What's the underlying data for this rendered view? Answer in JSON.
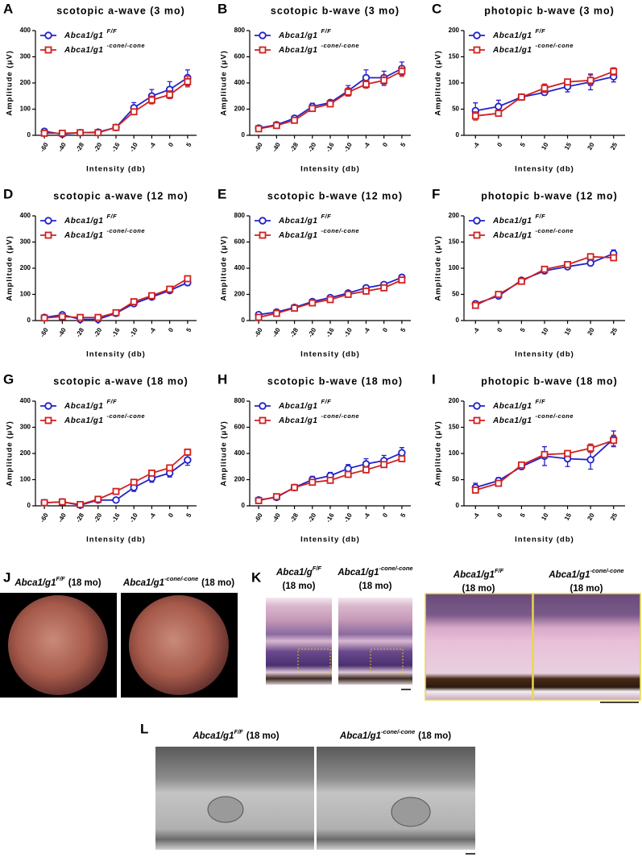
{
  "chart_data": [
    {
      "type": "line",
      "panel": "A",
      "title": "scotopic a-wave (3 mo)",
      "y_label": "Amplitude (μV)",
      "x_label": "Intensity (db)",
      "categories": [
        "-60",
        "-40",
        "-28",
        "-20",
        "-16",
        "-10",
        "-4",
        "0",
        "5"
      ],
      "ylim": [
        0,
        400
      ],
      "yticks": [
        0,
        100,
        200,
        300,
        400
      ],
      "series": [
        {
          "name": "Abca1/g1",
          "superscript": "F/F",
          "color": "#2222c8",
          "marker": "circle",
          "values": [
            15,
            5,
            10,
            12,
            30,
            105,
            150,
            175,
            220
          ],
          "errors": [
            8,
            5,
            5,
            5,
            5,
            20,
            25,
            30,
            30
          ]
        },
        {
          "name": "Abca1/g1",
          "superscript": "-cone/-cone",
          "color": "#d02020",
          "marker": "square",
          "values": [
            8,
            8,
            10,
            10,
            30,
            90,
            135,
            155,
            205
          ],
          "errors": [
            5,
            4,
            4,
            4,
            5,
            10,
            15,
            15,
            20
          ]
        }
      ]
    },
    {
      "type": "line",
      "panel": "B",
      "title": "scotopic b-wave (3 mo)",
      "y_label": "Amplitude (μV)",
      "x_label": "Intensity (db)",
      "categories": [
        "-60",
        "-40",
        "-28",
        "-20",
        "-16",
        "-10",
        "-4",
        "0",
        "5"
      ],
      "ylim": [
        0,
        800
      ],
      "yticks": [
        0,
        200,
        400,
        600,
        800
      ],
      "series": [
        {
          "name": "Abca1/g1",
          "superscript": "F/F",
          "color": "#2222c8",
          "marker": "circle",
          "values": [
            55,
            80,
            130,
            220,
            250,
            340,
            440,
            440,
            510
          ],
          "errors": [
            10,
            10,
            20,
            25,
            20,
            40,
            60,
            50,
            50
          ]
        },
        {
          "name": "Abca1/g1",
          "superscript": "-cone/-cone",
          "color": "#d02020",
          "marker": "square",
          "values": [
            50,
            75,
            115,
            205,
            240,
            330,
            390,
            420,
            490
          ],
          "errors": [
            10,
            10,
            15,
            20,
            20,
            30,
            30,
            40,
            40
          ]
        }
      ]
    },
    {
      "type": "line",
      "panel": "C",
      "title": "photopic b-wave (3 mo)",
      "y_label": "Amplitude (μV)",
      "x_label": "Intensity (db)",
      "categories": [
        "-4",
        "0",
        "5",
        "10",
        "15",
        "20",
        "25"
      ],
      "ylim": [
        0,
        200
      ],
      "yticks": [
        0,
        50,
        100,
        150,
        200
      ],
      "series": [
        {
          "name": "Abca1/g1",
          "superscript": "F/F",
          "color": "#2222c8",
          "marker": "circle",
          "values": [
            47,
            55,
            73,
            82,
            93,
            102,
            112
          ],
          "errors": [
            15,
            12,
            5,
            5,
            10,
            15,
            10
          ]
        },
        {
          "name": "Abca1/g1",
          "superscript": "-cone/-cone",
          "color": "#d02020",
          "marker": "square",
          "values": [
            37,
            42,
            73,
            90,
            102,
            105,
            122
          ],
          "errors": [
            8,
            5,
            4,
            8,
            5,
            10,
            7
          ]
        }
      ]
    },
    {
      "type": "line",
      "panel": "D",
      "title": "scotopic a-wave (12 mo)",
      "y_label": "Amplitude (μV)",
      "x_label": "Intensity (db)",
      "categories": [
        "-60",
        "-40",
        "-28",
        "-20",
        "-16",
        "-10",
        "-4",
        "0",
        "5"
      ],
      "ylim": [
        0,
        400
      ],
      "yticks": [
        0,
        100,
        200,
        300,
        400
      ],
      "series": [
        {
          "name": "Abca1/g1",
          "superscript": "F/F",
          "color": "#2222c8",
          "marker": "circle",
          "values": [
            12,
            22,
            5,
            5,
            28,
            65,
            90,
            115,
            145
          ],
          "errors": [
            5,
            5,
            5,
            5,
            5,
            8,
            8,
            8,
            10
          ]
        },
        {
          "name": "Abca1/g1",
          "superscript": "-cone/-cone",
          "color": "#d02020",
          "marker": "square",
          "values": [
            10,
            15,
            12,
            12,
            30,
            72,
            95,
            120,
            160
          ],
          "errors": [
            5,
            5,
            5,
            5,
            5,
            8,
            8,
            8,
            10
          ]
        }
      ]
    },
    {
      "type": "line",
      "panel": "E",
      "title": "scotopic b-wave (12 mo)",
      "y_label": "Amplitude (μV)",
      "x_label": "Intensity (db)",
      "categories": [
        "-60",
        "-40",
        "-28",
        "-20",
        "-16",
        "-10",
        "-4",
        "0",
        "5"
      ],
      "ylim": [
        0,
        800
      ],
      "yticks": [
        0,
        200,
        400,
        600,
        800
      ],
      "series": [
        {
          "name": "Abca1/g1",
          "superscript": "F/F",
          "color": "#2222c8",
          "marker": "circle",
          "values": [
            45,
            65,
            100,
            145,
            175,
            210,
            250,
            275,
            330
          ],
          "errors": [
            8,
            8,
            10,
            10,
            10,
            12,
            12,
            15,
            20
          ]
        },
        {
          "name": "Abca1/g1",
          "superscript": "-cone/-cone",
          "color": "#d02020",
          "marker": "square",
          "values": [
            25,
            55,
            95,
            135,
            160,
            200,
            225,
            250,
            310
          ],
          "errors": [
            5,
            8,
            10,
            10,
            10,
            12,
            12,
            15,
            15
          ]
        }
      ]
    },
    {
      "type": "line",
      "panel": "F",
      "title": "photopic b-wave (12 mo)",
      "y_label": "Amplitude (μV)",
      "x_label": "Intensity (db)",
      "categories": [
        "-4",
        "0",
        "5",
        "10",
        "15",
        "20",
        "25"
      ],
      "ylim": [
        0,
        200
      ],
      "yticks": [
        0,
        50,
        100,
        150,
        200
      ],
      "series": [
        {
          "name": "Abca1/g1",
          "superscript": "F/F",
          "color": "#2222c8",
          "marker": "circle",
          "values": [
            32,
            47,
            77,
            95,
            103,
            110,
            128
          ],
          "errors": [
            5,
            4,
            4,
            5,
            5,
            5,
            7
          ]
        },
        {
          "name": "Abca1/g1",
          "superscript": "-cone/-cone",
          "color": "#d02020",
          "marker": "square",
          "values": [
            29,
            50,
            75,
            98,
            107,
            122,
            120
          ],
          "errors": [
            4,
            4,
            4,
            4,
            5,
            5,
            5
          ]
        }
      ]
    },
    {
      "type": "line",
      "panel": "G",
      "title": "scotopic a-wave (18 mo)",
      "y_label": "Amplitude (μV)",
      "x_label": "Intensity (db)",
      "categories": [
        "-60",
        "-40",
        "-28",
        "-20",
        "-16",
        "-10",
        "-4",
        "0",
        "5"
      ],
      "ylim": [
        0,
        400
      ],
      "yticks": [
        0,
        100,
        200,
        300,
        400
      ],
      "series": [
        {
          "name": "Abca1/g1",
          "superscript": "F/F",
          "color": "#2222c8",
          "marker": "circle",
          "values": [
            12,
            15,
            3,
            22,
            22,
            70,
            105,
            125,
            175
          ],
          "errors": [
            5,
            5,
            3,
            5,
            5,
            15,
            15,
            15,
            20
          ]
        },
        {
          "name": "Abca1/g1",
          "superscript": "-cone/-cone",
          "color": "#d02020",
          "marker": "square",
          "values": [
            12,
            15,
            5,
            25,
            55,
            90,
            125,
            145,
            205
          ],
          "errors": [
            5,
            5,
            3,
            5,
            5,
            8,
            10,
            10,
            12
          ]
        }
      ]
    },
    {
      "type": "line",
      "panel": "H",
      "title": "scotopic b-wave (18 mo)",
      "y_label": "Amplitude (μV)",
      "x_label": "Intensity (db)",
      "categories": [
        "-60",
        "-40",
        "-28",
        "-20",
        "-16",
        "-10",
        "-4",
        "0",
        "5"
      ],
      "ylim": [
        0,
        800
      ],
      "yticks": [
        0,
        200,
        400,
        600,
        800
      ],
      "series": [
        {
          "name": "Abca1/g1",
          "superscript": "F/F",
          "color": "#2222c8",
          "marker": "circle",
          "values": [
            45,
            65,
            140,
            200,
            230,
            285,
            320,
            345,
            405
          ],
          "errors": [
            10,
            10,
            15,
            25,
            25,
            30,
            40,
            40,
            40
          ]
        },
        {
          "name": "Abca1/g1",
          "superscript": "-cone/-cone",
          "color": "#d02020",
          "marker": "square",
          "values": [
            40,
            70,
            140,
            180,
            195,
            240,
            275,
            315,
            360
          ],
          "errors": [
            8,
            8,
            10,
            15,
            15,
            15,
            20,
            20,
            20
          ]
        }
      ]
    },
    {
      "type": "line",
      "panel": "I",
      "title": "photopic b-wave (18 mo)",
      "y_label": "Amplitude (μV)",
      "x_label": "Intensity (db)",
      "categories": [
        "-4",
        "0",
        "5",
        "10",
        "15",
        "20",
        "25"
      ],
      "ylim": [
        0,
        200
      ],
      "yticks": [
        0,
        50,
        100,
        150,
        200
      ],
      "series": [
        {
          "name": "Abca1/g1",
          "superscript": "F/F",
          "color": "#2222c8",
          "marker": "circle",
          "values": [
            35,
            48,
            75,
            95,
            90,
            88,
            128
          ],
          "errors": [
            8,
            6,
            5,
            18,
            15,
            18,
            15
          ]
        },
        {
          "name": "Abca1/g1",
          "superscript": "-cone/-cone",
          "color": "#d02020",
          "marker": "square",
          "values": [
            30,
            43,
            78,
            98,
            100,
            110,
            125
          ],
          "errors": [
            5,
            5,
            5,
            5,
            5,
            8,
            10
          ]
        }
      ]
    }
  ],
  "panels": {
    "J": {
      "letter": "J",
      "labels": [
        {
          "base": "Abca1/g1",
          "sup": "F/F",
          "suffix": "(18 mo)"
        },
        {
          "base": "Abca1/g1",
          "sup": "-cone/-cone",
          "suffix": "(18 mo)"
        }
      ]
    },
    "K": {
      "letter": "K",
      "labels": [
        {
          "base": "Abca1/g",
          "sup": "F/F",
          "suffix": "(18 mo)"
        },
        {
          "base": "Abca1/g1",
          "sup": "-cone/-cone",
          "suffix": "(18 mo)"
        },
        {
          "base": "Abca1/g1",
          "sup": "F/F",
          "suffix": "(18 mo)"
        },
        {
          "base": "Abca1/g1",
          "sup": "-cone/-cone",
          "suffix": "(18 mo)"
        }
      ]
    },
    "L": {
      "letter": "L",
      "labels": [
        {
          "base": "Abca1/g1",
          "sup": "F/F",
          "suffix": "(18 mo)"
        },
        {
          "base": "Abca1/g1",
          "sup": "-cone/-cone",
          "suffix": "(18 mo)"
        }
      ]
    }
  }
}
